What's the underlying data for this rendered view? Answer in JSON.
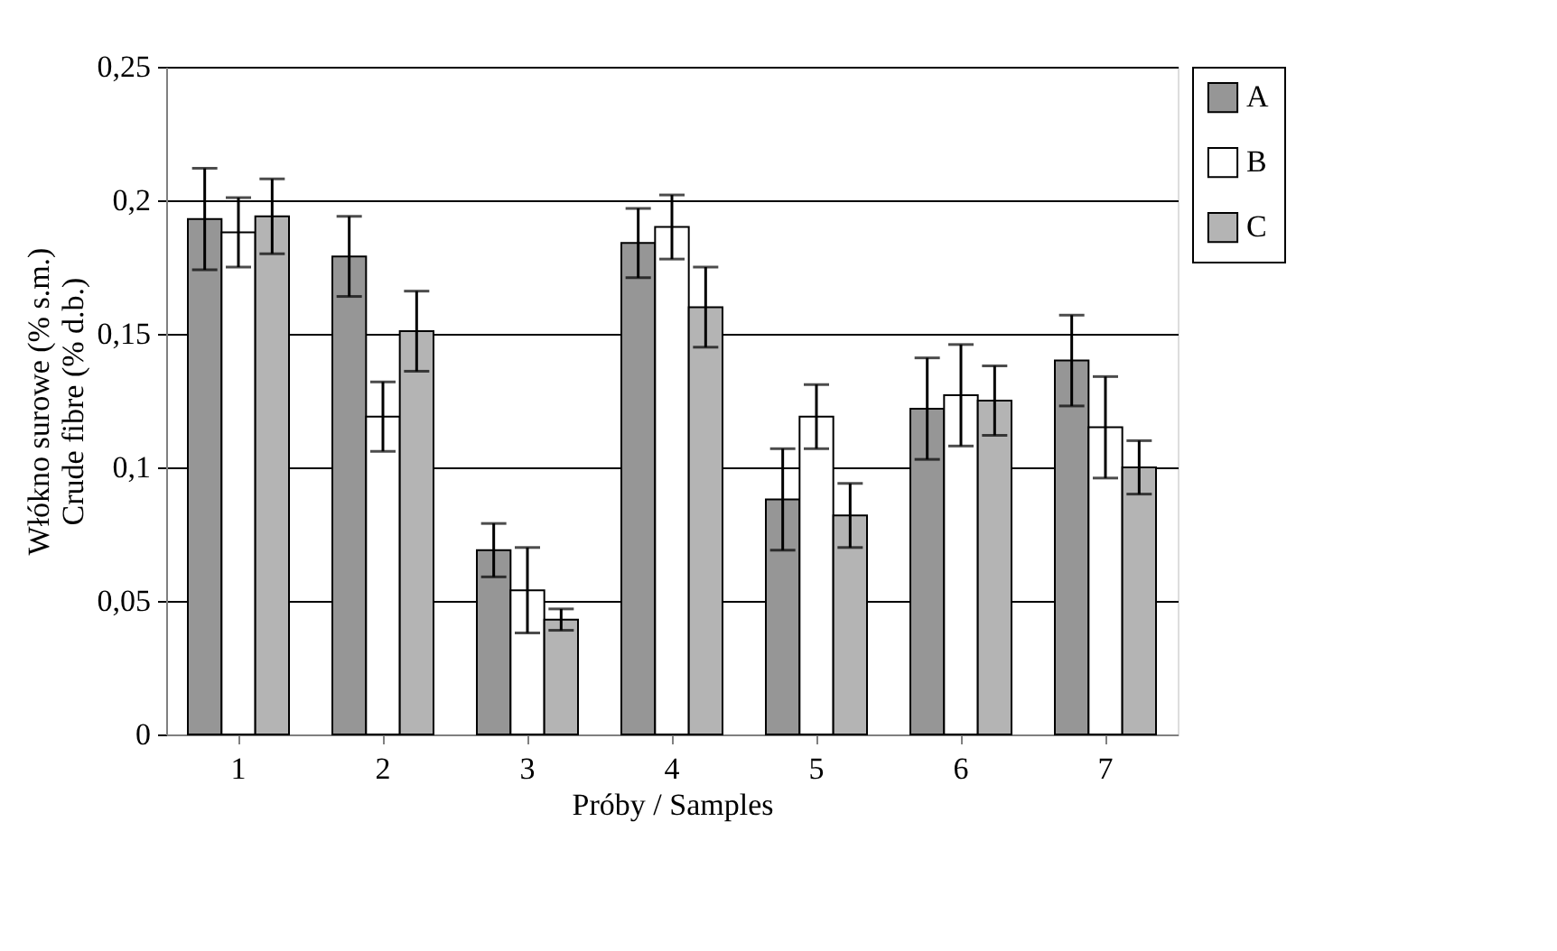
{
  "chart_data": {
    "type": "bar",
    "xlabel": "Próby / Samples",
    "ylabel": "Włókno surowe (% s.m.)\nCrude fibre (% d.b.)",
    "categories": [
      "1",
      "2",
      "3",
      "4",
      "5",
      "6",
      "7"
    ],
    "series": [
      {
        "name": "A",
        "color": "#969696",
        "values": [
          0.193,
          0.179,
          0.069,
          0.184,
          0.088,
          0.122,
          0.14
        ],
        "errors": [
          0.019,
          0.015,
          0.01,
          0.013,
          0.019,
          0.019,
          0.017
        ]
      },
      {
        "name": "B",
        "color": "#ffffff",
        "values": [
          0.188,
          0.119,
          0.054,
          0.19,
          0.119,
          0.127,
          0.115
        ],
        "errors": [
          0.013,
          0.013,
          0.016,
          0.012,
          0.012,
          0.019,
          0.019
        ]
      },
      {
        "name": "C",
        "color": "#b4b4b4",
        "values": [
          0.194,
          0.151,
          0.043,
          0.16,
          0.082,
          0.125,
          0.1
        ],
        "errors": [
          0.014,
          0.015,
          0.004,
          0.015,
          0.012,
          0.013,
          0.01
        ]
      }
    ],
    "ylim": [
      0,
      0.25
    ],
    "yticks": [
      0,
      {
        "value": 0.05,
        "label": "0,05"
      },
      {
        "value": 0.1,
        "label": "0,1"
      },
      {
        "value": 0.15,
        "label": "0,15"
      },
      {
        "value": 0.2,
        "label": "0,2"
      },
      {
        "value": 0.25,
        "label": "0,25"
      }
    ],
    "grid": "y",
    "legend": "right"
  }
}
